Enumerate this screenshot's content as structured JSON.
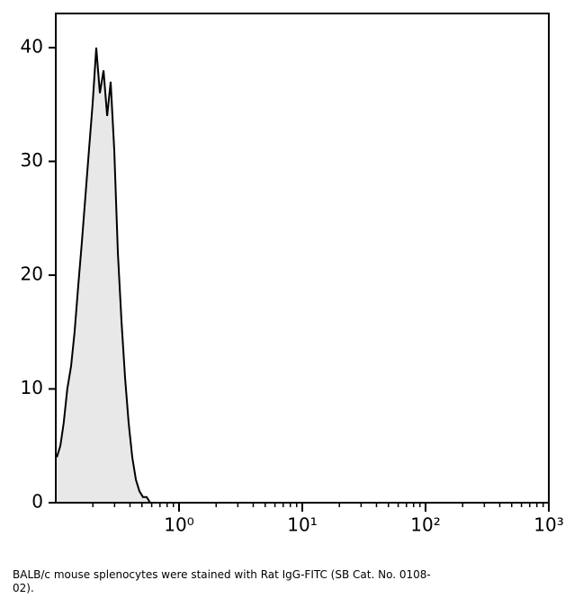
{
  "chart_data": {
    "type": "area",
    "x": [
      0.102,
      0.109,
      0.116,
      0.124,
      0.133,
      0.142,
      0.152,
      0.163,
      0.174,
      0.186,
      0.199,
      0.213,
      0.228,
      0.244,
      0.261,
      0.279,
      0.298,
      0.319,
      0.341,
      0.365,
      0.39,
      0.417,
      0.447,
      0.477,
      0.51,
      0.546,
      0.584,
      0.625,
      0.68,
      0.91,
      1000
    ],
    "values": [
      4,
      5,
      7,
      10,
      12,
      15,
      19,
      23,
      27,
      31,
      35,
      40,
      36,
      38,
      34,
      37,
      31,
      22,
      16,
      11,
      7,
      4,
      2,
      1,
      0.5,
      0.5,
      0,
      0,
      0,
      0,
      0
    ],
    "color": "#e8e8e8",
    "line_color": "#000000",
    "xlog": true,
    "xlim": [
      0.1,
      1000
    ],
    "ylim": [
      0,
      43
    ],
    "xticks": [
      {
        "value": 1,
        "label": "10⁰"
      },
      {
        "value": 10,
        "label": "10¹"
      },
      {
        "value": 100,
        "label": "10²"
      },
      {
        "value": 1000,
        "label": "10³"
      }
    ],
    "xminorticks": [
      0.2,
      0.3,
      0.4,
      0.5,
      0.6,
      0.7,
      0.8,
      0.9,
      2,
      3,
      4,
      5,
      6,
      7,
      8,
      9,
      20,
      30,
      40,
      50,
      60,
      70,
      80,
      90,
      200,
      300,
      400,
      500,
      600,
      700,
      800,
      900
    ],
    "yticks": [
      0,
      10,
      20,
      30,
      40
    ],
    "caption": "BALB/c mouse splenocytes were stained with Rat IgG-FITC (SB Cat. No. 0108-02)."
  }
}
